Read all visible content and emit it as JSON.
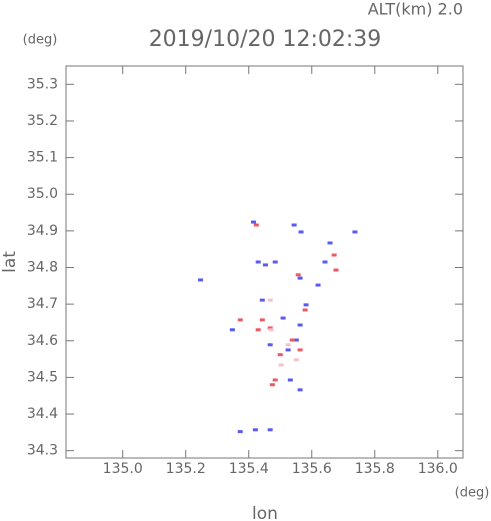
{
  "chart_data": {
    "type": "scatter",
    "title": "2019/10/20 12:02:39",
    "subtitle": "ALT(km) 2.0",
    "x_label": "lon",
    "y_label": "lat",
    "x_unit": "(deg)",
    "y_unit": "(deg)",
    "xlim": [
      134.82,
      136.08
    ],
    "ylim": [
      34.28,
      35.35
    ],
    "xticks": [
      {
        "value": 135.0,
        "label": "135.0"
      },
      135.2,
      135.4,
      135.6,
      135.8,
      {
        "value": 136.0,
        "label": "136.0"
      }
    ],
    "yticks": [
      34.3,
      34.4,
      34.5,
      34.6,
      34.7,
      34.8,
      34.9,
      {
        "value": 35.0,
        "label": "35.0"
      },
      35.1,
      35.2,
      35.3
    ],
    "series": [
      {
        "color": "#5a5af0",
        "x": [
          135.415,
          135.43,
          135.453,
          135.484,
          135.544,
          135.566,
          135.658,
          135.642,
          135.62,
          135.737,
          135.563,
          135.443,
          135.509,
          135.563,
          135.551,
          135.525,
          135.468,
          135.348,
          135.373,
          135.421,
          135.468,
          135.563,
          135.532,
          135.582,
          135.247
        ],
        "values": [
          34.924,
          34.815,
          34.807,
          34.815,
          34.916,
          34.897,
          34.867,
          34.815,
          34.752,
          34.897,
          34.771,
          34.711,
          34.662,
          34.643,
          34.602,
          34.575,
          34.589,
          34.63,
          34.352,
          34.357,
          34.357,
          34.466,
          34.493,
          34.698,
          34.766
        ]
      },
      {
        "color": "#e85a64",
        "x": [
          135.424,
          135.671,
          135.677,
          135.557,
          135.468,
          135.43,
          135.538,
          135.5,
          135.484,
          135.475,
          135.443,
          135.563,
          135.579,
          135.373
        ],
        "values": [
          34.916,
          34.834,
          34.793,
          34.78,
          34.635,
          34.63,
          34.602,
          34.562,
          34.493,
          34.48,
          34.657,
          34.575,
          34.684,
          34.657
        ]
      },
      {
        "color": "#f5c2ca",
        "x": [
          135.471,
          135.525,
          135.503,
          135.551,
          135.468
        ],
        "values": [
          34.63,
          34.589,
          34.534,
          34.548,
          34.711
        ]
      }
    ]
  }
}
